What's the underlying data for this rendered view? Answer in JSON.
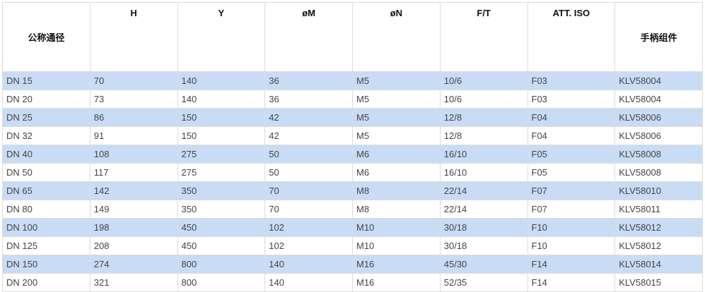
{
  "table": {
    "headers": [
      "公称通径",
      "H",
      "Y",
      "øM",
      "øN",
      "F/T",
      "ATT. ISO",
      "手柄组件"
    ],
    "rows": [
      [
        "DN 15",
        "70",
        "140",
        "36",
        "M5",
        "10/6",
        "F03",
        "KLV58004"
      ],
      [
        "DN 20",
        "73",
        "140",
        "36",
        "M5",
        "10/6",
        "F03",
        "KLV58004"
      ],
      [
        "DN 25",
        "86",
        "150",
        "42",
        "M5",
        "12/8",
        "F04",
        "KLV58006"
      ],
      [
        "DN 32",
        "91",
        "150",
        "42",
        "M5",
        "12/8",
        "F04",
        "KLV58006"
      ],
      [
        "DN 40",
        "108",
        "275",
        "50",
        "M6",
        "16/10",
        "F05",
        "KLV58008"
      ],
      [
        "DN 50",
        "117",
        "275",
        "50",
        "M6",
        "16/10",
        "F05",
        "KLV58008"
      ],
      [
        "DN 65",
        "142",
        "350",
        "70",
        "M8",
        "22/14",
        "F07",
        "KLV58010"
      ],
      [
        "DN 80",
        "149",
        "350",
        "70",
        "M8",
        "22/14",
        "F07",
        "KLV58011"
      ],
      [
        "DN 100",
        "198",
        "450",
        "102",
        "M10",
        "30/18",
        "F10",
        "KLV58012"
      ],
      [
        "DN 125",
        "208",
        "450",
        "102",
        "M10",
        "30/18",
        "F10",
        "KLV58012"
      ],
      [
        "DN 150",
        "274",
        "800",
        "140",
        "M16",
        "45/30",
        "F14",
        "KLV58014"
      ],
      [
        "DN 200",
        "321",
        "800",
        "140",
        "M16",
        "52/35",
        "F14",
        "KLV58015"
      ]
    ],
    "colors": {
      "stripe": "#c9dcf6",
      "border": "#dcdcdc"
    }
  }
}
